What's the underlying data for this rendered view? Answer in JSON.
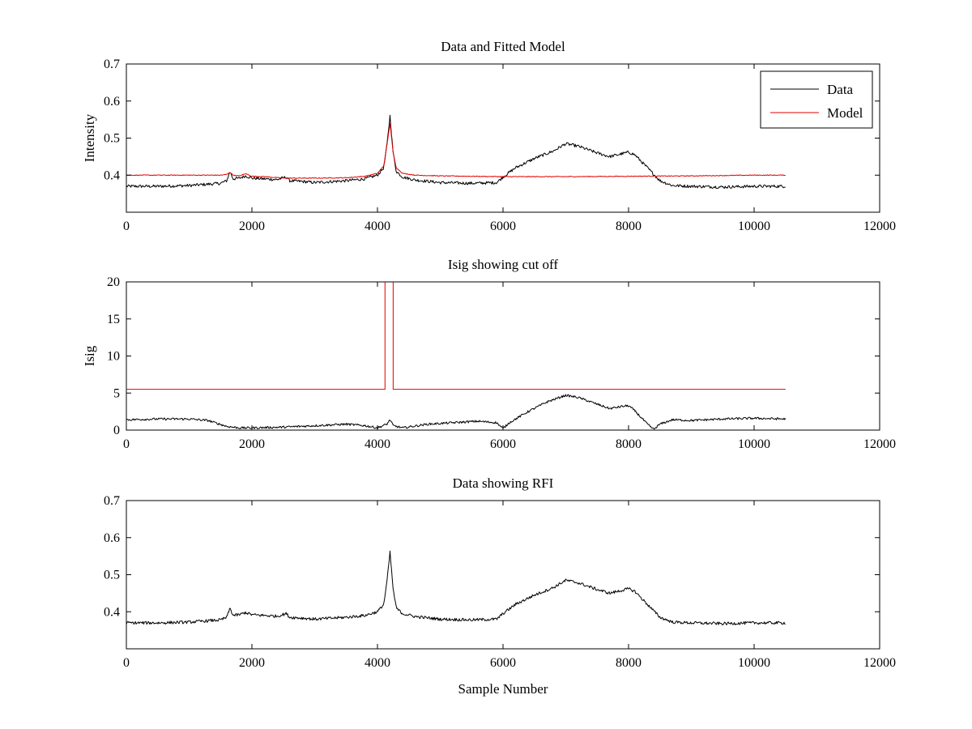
{
  "figure": {
    "background": "#ffffff"
  },
  "chart_data": [
    {
      "type": "line",
      "title": "Data and Fitted Model",
      "xlabel": "",
      "ylabel": "Intensity",
      "xlim": [
        0,
        12000
      ],
      "ylim": [
        0.3,
        0.7
      ],
      "xticks": [
        0,
        2000,
        4000,
        6000,
        8000,
        10000,
        12000
      ],
      "xtick_labels": [
        "0",
        "2000",
        "4000",
        "6000",
        "8000",
        "10000",
        "12000"
      ],
      "yticks": [
        0.4,
        0.5,
        0.6,
        0.7
      ],
      "ytick_labels": [
        "0.4",
        "0.5",
        "0.6",
        "0.7"
      ],
      "grid": false,
      "legend": "top-right",
      "series": [
        {
          "name": "Data",
          "color": "#000000",
          "noise": 0.004,
          "x": [
            0,
            500,
            1000,
            1500,
            1600,
            1650,
            1700,
            1800,
            1900,
            2000,
            2200,
            2400,
            2550,
            2600,
            2800,
            3000,
            3500,
            3800,
            4000,
            4100,
            4150,
            4200,
            4250,
            4300,
            4400,
            4600,
            5000,
            5500,
            5900,
            6000,
            6200,
            6500,
            6800,
            7000,
            7200,
            7500,
            7700,
            7900,
            8000,
            8100,
            8300,
            8500,
            8700,
            9000,
            9500,
            10000,
            10500
          ],
          "y": [
            0.37,
            0.37,
            0.372,
            0.378,
            0.385,
            0.41,
            0.39,
            0.392,
            0.398,
            0.392,
            0.39,
            0.388,
            0.395,
            0.385,
            0.383,
            0.38,
            0.385,
            0.39,
            0.4,
            0.42,
            0.48,
            0.56,
            0.46,
            0.41,
            0.395,
            0.387,
            0.38,
            0.378,
            0.38,
            0.395,
            0.42,
            0.445,
            0.465,
            0.485,
            0.478,
            0.46,
            0.45,
            0.458,
            0.462,
            0.455,
            0.42,
            0.385,
            0.372,
            0.37,
            0.368,
            0.37,
            0.37
          ]
        },
        {
          "name": "Model",
          "color": "#e00000",
          "noise": 0.001,
          "x": [
            0,
            1000,
            1500,
            1600,
            1650,
            1700,
            1800,
            1900,
            2000,
            2200,
            2500,
            3000,
            3500,
            3800,
            4000,
            4100,
            4150,
            4200,
            4250,
            4300,
            4400,
            4600,
            5000,
            6000,
            7000,
            8000,
            9000,
            10000,
            10500
          ],
          "y": [
            0.4,
            0.4,
            0.4,
            0.402,
            0.408,
            0.4,
            0.398,
            0.404,
            0.397,
            0.396,
            0.392,
            0.392,
            0.393,
            0.397,
            0.405,
            0.425,
            0.48,
            0.54,
            0.46,
            0.42,
            0.405,
            0.4,
            0.398,
            0.396,
            0.396,
            0.397,
            0.398,
            0.4,
            0.4
          ]
        }
      ]
    },
    {
      "type": "line",
      "title": "Isig showing cut off",
      "xlabel": "",
      "ylabel": "Isig",
      "xlim": [
        0,
        12000
      ],
      "ylim": [
        0,
        20
      ],
      "xticks": [
        0,
        2000,
        4000,
        6000,
        8000,
        10000,
        12000
      ],
      "xtick_labels": [
        "0",
        "2000",
        "4000",
        "6000",
        "8000",
        "10000",
        "12000"
      ],
      "yticks": [
        0,
        5,
        10,
        15,
        20
      ],
      "ytick_labels": [
        "0",
        "5",
        "10",
        "15",
        "20"
      ],
      "grid": false,
      "legend": "none",
      "series": [
        {
          "color": "#000000",
          "noise": 0.15,
          "x": [
            0,
            500,
            1000,
            1300,
            1600,
            1800,
            2000,
            2500,
            3000,
            3500,
            3800,
            4000,
            4150,
            4200,
            4250,
            4400,
            4800,
            5200,
            5600,
            5900,
            6000,
            6100,
            6400,
            6700,
            7000,
            7200,
            7500,
            7700,
            7900,
            8000,
            8100,
            8300,
            8400,
            8500,
            8700,
            9000,
            9500,
            10000,
            10500
          ],
          "y": [
            1.4,
            1.5,
            1.5,
            1.3,
            0.5,
            0.3,
            0.3,
            0.4,
            0.6,
            0.8,
            0.6,
            0.3,
            0.8,
            1.4,
            0.6,
            0.3,
            0.8,
            1.0,
            1.2,
            1.0,
            0.2,
            1.0,
            2.5,
            3.8,
            4.7,
            4.4,
            3.5,
            2.9,
            3.2,
            3.3,
            2.6,
            0.8,
            0.1,
            0.8,
            1.4,
            1.3,
            1.5,
            1.6,
            1.5
          ]
        },
        {
          "color": "#e00000",
          "noise": 0,
          "x": [
            0,
            4120,
            4120,
            4250,
            4250,
            10500
          ],
          "y": [
            5.5,
            5.5,
            21,
            21,
            5.5,
            5.5
          ]
        }
      ]
    },
    {
      "type": "line",
      "title": "Data showing RFI",
      "xlabel": "Sample Number",
      "ylabel": "",
      "xlim": [
        0,
        12000
      ],
      "ylim": [
        0.3,
        0.7
      ],
      "xticks": [
        0,
        2000,
        4000,
        6000,
        8000,
        10000,
        12000
      ],
      "xtick_labels": [
        "0",
        "2000",
        "4000",
        "6000",
        "8000",
        "10000",
        "12000"
      ],
      "yticks": [
        0.4,
        0.5,
        0.6,
        0.7
      ],
      "ytick_labels": [
        "0.4",
        "0.5",
        "0.6",
        "0.7"
      ],
      "grid": false,
      "legend": "none",
      "series": [
        {
          "color": "#000000",
          "noise": 0.004,
          "x": [
            0,
            500,
            1000,
            1500,
            1600,
            1650,
            1700,
            1800,
            1900,
            2000,
            2200,
            2400,
            2550,
            2600,
            2800,
            3000,
            3500,
            3800,
            4000,
            4100,
            4150,
            4200,
            4250,
            4300,
            4400,
            4600,
            5000,
            5500,
            5900,
            6000,
            6200,
            6500,
            6800,
            7000,
            7200,
            7500,
            7700,
            7900,
            8000,
            8100,
            8300,
            8500,
            8700,
            9000,
            9500,
            10000,
            10500
          ],
          "y": [
            0.37,
            0.37,
            0.372,
            0.378,
            0.385,
            0.41,
            0.39,
            0.392,
            0.398,
            0.392,
            0.39,
            0.388,
            0.395,
            0.385,
            0.383,
            0.38,
            0.385,
            0.39,
            0.4,
            0.42,
            0.48,
            0.56,
            0.46,
            0.41,
            0.395,
            0.387,
            0.38,
            0.378,
            0.38,
            0.395,
            0.42,
            0.445,
            0.465,
            0.485,
            0.478,
            0.46,
            0.45,
            0.458,
            0.462,
            0.455,
            0.42,
            0.385,
            0.372,
            0.37,
            0.368,
            0.37,
            0.37
          ]
        }
      ]
    }
  ]
}
